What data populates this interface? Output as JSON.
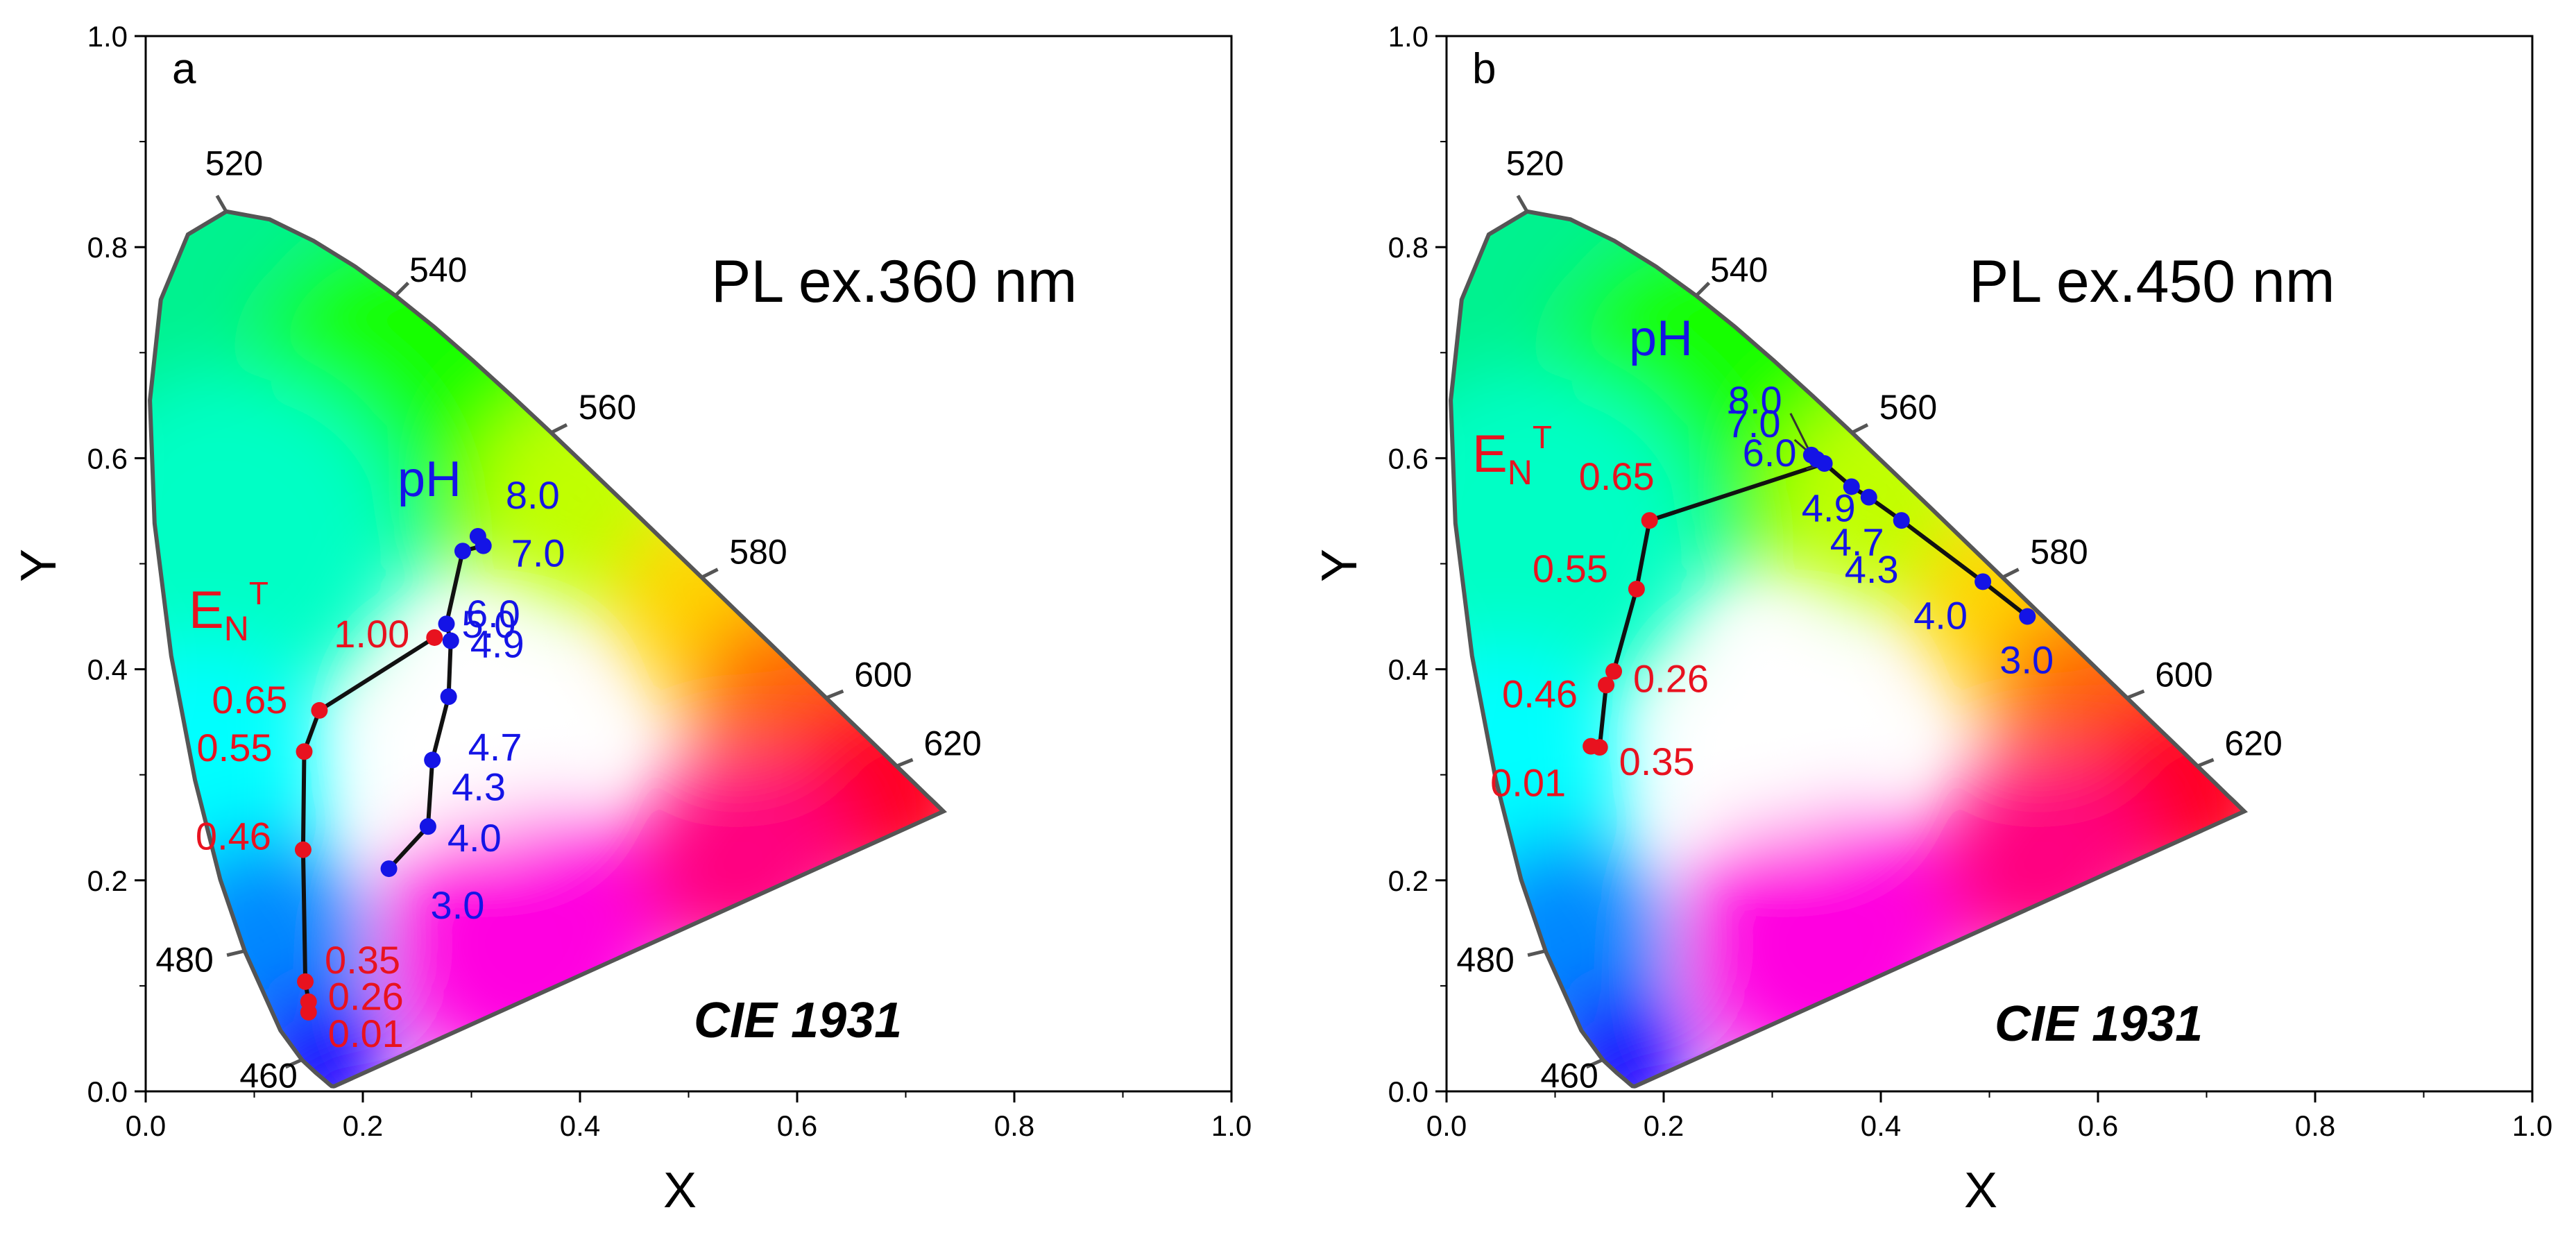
{
  "colors": {
    "red": "#e8121f",
    "blue": "#1414e6",
    "axis": "#000000"
  },
  "chart_data": [
    {
      "type": "scatter",
      "panel": "a",
      "title": "PL ex.360 nm",
      "watermark": "CIE 1931",
      "xlabel": "X",
      "ylabel": "Y",
      "xlim": [
        0.0,
        1.0
      ],
      "ylim": [
        0.0,
        1.0
      ],
      "xticks": [
        "0.0",
        "0.2",
        "0.4",
        "0.6",
        "0.8",
        "1.0"
      ],
      "yticks": [
        "0.0",
        "0.2",
        "0.4",
        "0.6",
        "0.8",
        "1.0"
      ],
      "wavelengths": [
        {
          "label": "460",
          "x": 0.144,
          "y": 0.03
        },
        {
          "label": "480",
          "x": 0.091,
          "y": 0.133
        },
        {
          "label": "520",
          "x": 0.074,
          "y": 0.834
        },
        {
          "label": "540",
          "x": 0.23,
          "y": 0.754
        },
        {
          "label": "560",
          "x": 0.373,
          "y": 0.624
        },
        {
          "label": "580",
          "x": 0.512,
          "y": 0.487
        },
        {
          "label": "600",
          "x": 0.627,
          "y": 0.373
        },
        {
          "label": "620",
          "x": 0.691,
          "y": 0.308
        }
      ],
      "series": [
        {
          "name": "E_N^T",
          "color": "#e8121f",
          "points": [
            {
              "label": "1.00",
              "x": 0.266,
              "y": 0.43
            },
            {
              "label": "0.65",
              "x": 0.16,
              "y": 0.361
            },
            {
              "label": "0.55",
              "x": 0.146,
              "y": 0.322
            },
            {
              "label": "0.46",
              "x": 0.145,
              "y": 0.229
            },
            {
              "label": "0.35",
              "x": 0.147,
              "y": 0.104
            },
            {
              "label": "0.26",
              "x": 0.15,
              "y": 0.085
            },
            {
              "label": "0.01",
              "x": 0.15,
              "y": 0.075
            }
          ]
        },
        {
          "name": "pH",
          "color": "#1414e6",
          "points": [
            {
              "label": "8.0",
              "x": 0.306,
              "y": 0.526
            },
            {
              "label": "7.0",
              "x": 0.311,
              "y": 0.517
            },
            {
              "label": "6.0",
              "x": 0.292,
              "y": 0.512
            },
            {
              "label": "5.0",
              "x": 0.277,
              "y": 0.443
            },
            {
              "label": "4.9",
              "x": 0.281,
              "y": 0.427
            },
            {
              "label": "4.7",
              "x": 0.279,
              "y": 0.374
            },
            {
              "label": "4.3",
              "x": 0.264,
              "y": 0.314
            },
            {
              "label": "4.0",
              "x": 0.26,
              "y": 0.251
            },
            {
              "label": "3.0",
              "x": 0.224,
              "y": 0.211
            }
          ]
        }
      ]
    },
    {
      "type": "scatter",
      "panel": "b",
      "title": "PL ex.450 nm",
      "watermark": "CIE 1931",
      "xlabel": "X",
      "ylabel": "Y",
      "xlim": [
        0.0,
        1.0
      ],
      "ylim": [
        0.0,
        1.0
      ],
      "xticks": [
        "0.0",
        "0.2",
        "0.4",
        "0.6",
        "0.8",
        "1.0"
      ],
      "yticks": [
        "0.0",
        "0.2",
        "0.4",
        "0.6",
        "0.8",
        "1.0"
      ],
      "wavelengths": [
        {
          "label": "460",
          "x": 0.144,
          "y": 0.03
        },
        {
          "label": "480",
          "x": 0.091,
          "y": 0.133
        },
        {
          "label": "520",
          "x": 0.074,
          "y": 0.834
        },
        {
          "label": "540",
          "x": 0.23,
          "y": 0.754
        },
        {
          "label": "560",
          "x": 0.373,
          "y": 0.624
        },
        {
          "label": "580",
          "x": 0.512,
          "y": 0.487
        },
        {
          "label": "600",
          "x": 0.627,
          "y": 0.373
        },
        {
          "label": "620",
          "x": 0.691,
          "y": 0.308
        }
      ],
      "series": [
        {
          "name": "E_N^T",
          "color": "#e8121f",
          "points": [
            {
              "label": "0.65",
              "x": 0.187,
              "y": 0.541
            },
            {
              "label": "0.55",
              "x": 0.175,
              "y": 0.476
            },
            {
              "label": "0.26",
              "x": 0.154,
              "y": 0.398
            },
            {
              "label": "0.46",
              "x": 0.147,
              "y": 0.385
            },
            {
              "label": "0.35",
              "x": 0.141,
              "y": 0.326
            },
            {
              "label": "0.01",
              "x": 0.133,
              "y": 0.327
            }
          ]
        },
        {
          "name": "pH",
          "color": "#1414e6",
          "points": [
            {
              "label": "8.0",
              "x": 0.336,
              "y": 0.603
            },
            {
              "label": "7.0",
              "x": 0.341,
              "y": 0.599
            },
            {
              "label": "6.0",
              "x": 0.348,
              "y": 0.595
            },
            {
              "label": "4.9",
              "x": 0.373,
              "y": 0.573
            },
            {
              "label": "4.7",
              "x": 0.389,
              "y": 0.563
            },
            {
              "label": "4.3",
              "x": 0.419,
              "y": 0.541
            },
            {
              "label": "4.0",
              "x": 0.494,
              "y": 0.483
            },
            {
              "label": "3.0",
              "x": 0.535,
              "y": 0.45
            }
          ]
        }
      ],
      "connector": "E_N^T 0.65 to pH 6.0"
    }
  ],
  "legend_labels": {
    "en_base": "E",
    "en_sub": "N",
    "en_sup": "T",
    "ph": "pH"
  }
}
